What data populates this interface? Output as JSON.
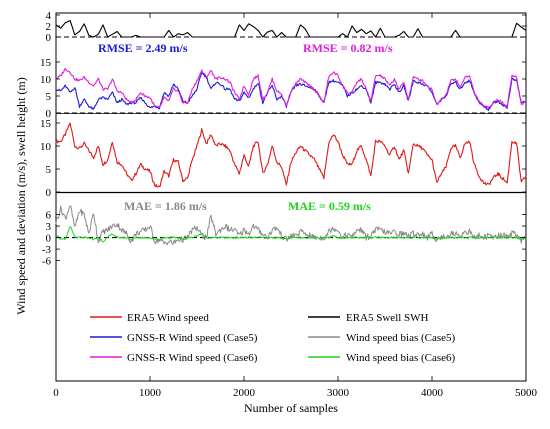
{
  "chart_data": {
    "type": "line",
    "xlabel": "Number of samples",
    "ylabel": "Wind speed and deviation (m/s), swell height (m)",
    "xlim": [
      0,
      5000
    ],
    "xticks": [
      "0",
      "1000",
      "2000",
      "3000",
      "4000",
      "5000"
    ],
    "panels": [
      {
        "id": "swh",
        "ylim": [
          0,
          4
        ],
        "yticks": [
          "0",
          "2",
          "4"
        ],
        "refline": 0
      },
      {
        "id": "gnss",
        "ylim": [
          0,
          15
        ],
        "yticks": [
          "0",
          "5",
          "10",
          "15"
        ],
        "refline": 0
      },
      {
        "id": "era5",
        "ylim": [
          0,
          15
        ],
        "yticks": [
          "0",
          "5",
          "10",
          "15"
        ]
      },
      {
        "id": "bias",
        "ylim": [
          -10,
          9
        ],
        "yticks": [
          "-6",
          "-3",
          "0",
          "3",
          "6"
        ],
        "refline": 0
      }
    ],
    "annotations": [
      {
        "text": "RMSE = 2.49 m/s",
        "panel": "gnss",
        "color": "#1c1cd6"
      },
      {
        "text": "RMSE = 0.82 m/s",
        "panel": "gnss",
        "color": "#e01ee0"
      },
      {
        "text": "MAE = 1.86 m/s",
        "panel": "bias",
        "color": "#8a8a8a"
      },
      {
        "text": "MAE = 0.59 m/s",
        "panel": "bias",
        "color": "#1ed41e"
      }
    ],
    "series": [
      {
        "name": "ERA5 Wind speed",
        "panel": "era5",
        "color": "#e01818",
        "values": [
          11,
          11,
          12.5,
          15,
          10,
          9.5,
          10.5,
          9,
          7.5,
          10,
          6,
          7,
          11,
          6.5,
          6,
          4,
          2.5,
          4,
          6,
          5,
          4.5,
          1.5,
          1,
          4.5,
          3.5,
          7,
          6.5,
          2.5,
          3,
          7,
          10,
          13.5,
          10.5,
          12.5,
          10,
          10.5,
          10,
          9,
          6,
          4,
          8,
          5.5,
          10,
          11,
          4,
          6,
          10,
          6.5,
          5.5,
          1.5,
          6.5,
          8.5,
          10,
          9,
          8,
          7,
          5,
          3,
          10.5,
          12.5,
          11,
          8,
          6,
          6,
          9,
          10,
          7,
          3.5,
          11,
          11,
          10,
          8,
          10,
          7,
          9,
          4,
          10.5,
          10,
          9.5,
          8,
          7,
          2,
          4,
          5.5,
          9.5,
          10,
          7.5,
          10.5,
          11,
          6,
          3.5,
          2,
          1.5,
          3,
          4,
          3,
          2,
          11,
          10.5,
          2,
          3.5
        ]
      },
      {
        "name": "ERA5 Swell SWH",
        "panel": "swh",
        "color": "#000000",
        "values": [
          2.2,
          1.6,
          2.6,
          3,
          0.4,
          1,
          2.4,
          0.3,
          0,
          0.5,
          2.2,
          0,
          0.5,
          1,
          0,
          0,
          0,
          0.3,
          0,
          0,
          0,
          0,
          0,
          0,
          1.2,
          0,
          0.6,
          0.4,
          0.8,
          0,
          0,
          0,
          0,
          0,
          0,
          0,
          0,
          0,
          0,
          2.2,
          1.2,
          2.4,
          1.9,
          1.2,
          0,
          0.9,
          1.2,
          0,
          0.8,
          0,
          0,
          0,
          2.2,
          1.5,
          0,
          0,
          0,
          0,
          0,
          0,
          0,
          0.6,
          0,
          2,
          0.8,
          1.4,
          0.6,
          1.1,
          0,
          1.6,
          0,
          0,
          0,
          0.3,
          1,
          0,
          0,
          1.5,
          0,
          0,
          0,
          0,
          0,
          0,
          0,
          1.2,
          0,
          0,
          0,
          0,
          0,
          0,
          0,
          0,
          0,
          0,
          0,
          0,
          2.5,
          1.8,
          1.2
        ]
      },
      {
        "name": "GNSS-R Wind speed (Case5)",
        "panel": "gnss",
        "color": "#1c1cd6",
        "values": [
          7,
          6.5,
          8,
          6,
          7.5,
          2,
          4,
          2,
          1,
          4,
          4.5,
          4,
          6,
          3,
          4,
          2.5,
          3,
          3,
          4.5,
          3,
          1.5,
          2,
          1.5,
          6,
          5,
          8.5,
          7,
          3.5,
          3,
          5,
          7,
          12,
          10.5,
          7,
          9,
          8.5,
          7,
          7,
          4,
          3.5,
          6,
          4.5,
          7,
          9,
          3,
          6,
          8,
          4,
          5,
          2,
          6,
          8,
          8.5,
          8,
          7.5,
          7,
          5,
          3,
          9,
          9.5,
          9,
          8,
          5,
          6,
          7,
          8,
          7,
          3,
          9,
          9,
          8.5,
          7,
          8.5,
          6,
          8,
          3.5,
          9.5,
          9,
          8.5,
          8,
          6,
          2.5,
          4,
          5,
          8.5,
          9,
          7,
          9,
          9.5,
          6,
          3,
          2,
          1,
          3,
          3.5,
          2.5,
          1.5,
          10,
          9.5,
          3,
          3.5
        ]
      },
      {
        "name": "GNSS-R Wind speed (Case6)",
        "panel": "gnss",
        "color": "#e01ee0",
        "values": [
          10,
          11,
          13,
          12,
          10,
          9.5,
          10.5,
          9,
          8,
          10,
          7,
          7,
          10,
          6.5,
          6,
          4,
          3,
          4,
          6,
          5,
          4.5,
          2,
          1.5,
          4.5,
          3.5,
          7,
          6.5,
          3,
          3,
          7,
          9.5,
          12.5,
          10.5,
          12.5,
          10,
          10.5,
          10,
          9,
          6,
          4,
          8,
          5.5,
          10,
          11,
          4,
          6,
          10,
          6.5,
          5.5,
          2,
          6.5,
          8.5,
          10,
          9,
          8,
          7,
          5,
          3,
          10.5,
          12,
          11,
          8,
          6,
          6,
          9,
          10,
          7,
          3.5,
          11,
          11,
          10,
          8,
          10,
          7,
          9,
          4,
          10.5,
          10,
          9.5,
          8,
          7,
          2.5,
          4,
          5.5,
          9.5,
          10,
          7.5,
          10.5,
          11,
          6,
          3.5,
          2,
          1.5,
          3,
          4,
          3,
          2,
          11,
          10.5,
          2.5,
          3.5
        ]
      },
      {
        "name": "Wind speed bias (Case5)",
        "panel": "bias",
        "color": "#8a8a8a",
        "values": [
          4,
          7.5,
          5,
          8.5,
          2.5,
          7,
          6,
          1,
          6.5,
          -1,
          1.5,
          2,
          3,
          3.5,
          2,
          1,
          -1,
          1,
          1.5,
          2,
          3,
          -1,
          -0.5,
          -1.5,
          -1,
          -1.5,
          -0.5,
          -0.5,
          0,
          2,
          2.5,
          0.5,
          0,
          5.5,
          1,
          2,
          3,
          2,
          2,
          0.5,
          2,
          1,
          3,
          2,
          1,
          0,
          2,
          2.5,
          0.5,
          -0.5,
          0.5,
          0.5,
          1.5,
          1,
          0.5,
          0,
          0,
          0,
          1.5,
          2.5,
          2,
          0,
          1,
          0,
          2,
          2,
          0,
          0.5,
          2,
          2,
          1.5,
          1,
          1.5,
          1,
          1,
          0.5,
          1,
          1,
          1,
          0,
          1,
          -0.5,
          0,
          0.5,
          1,
          1,
          0.5,
          1.5,
          1.5,
          0,
          0.5,
          0,
          0.5,
          0,
          0.5,
          0.5,
          0.5,
          1,
          1,
          -1,
          0
        ]
      },
      {
        "name": "Wind speed bias (Case6)",
        "panel": "bias",
        "color": "#1ed41e",
        "values": [
          1,
          -0.5,
          -0.5,
          3,
          0,
          0,
          0,
          0,
          -0.5,
          0,
          -1,
          0,
          1,
          0,
          0,
          0,
          -0.5,
          0,
          0,
          0,
          0,
          -0.5,
          -0.5,
          0,
          0,
          0,
          0,
          -0.5,
          0,
          0,
          0.5,
          1,
          0,
          0,
          0,
          0,
          0,
          0,
          0,
          0,
          0,
          0,
          0,
          0,
          0,
          0,
          0,
          0,
          0,
          -0.5,
          0,
          0,
          0,
          0,
          0,
          0,
          0,
          0,
          0,
          0.5,
          0,
          0,
          0,
          0,
          0,
          0,
          0,
          0,
          0,
          0,
          0,
          0,
          0,
          0,
          0,
          0,
          0,
          0,
          0,
          0,
          0,
          -0.5,
          0,
          0,
          0,
          0,
          0,
          0,
          0,
          0,
          0,
          0,
          0,
          0,
          0,
          0,
          0,
          0,
          0,
          -0.5,
          0
        ]
      }
    ]
  }
}
